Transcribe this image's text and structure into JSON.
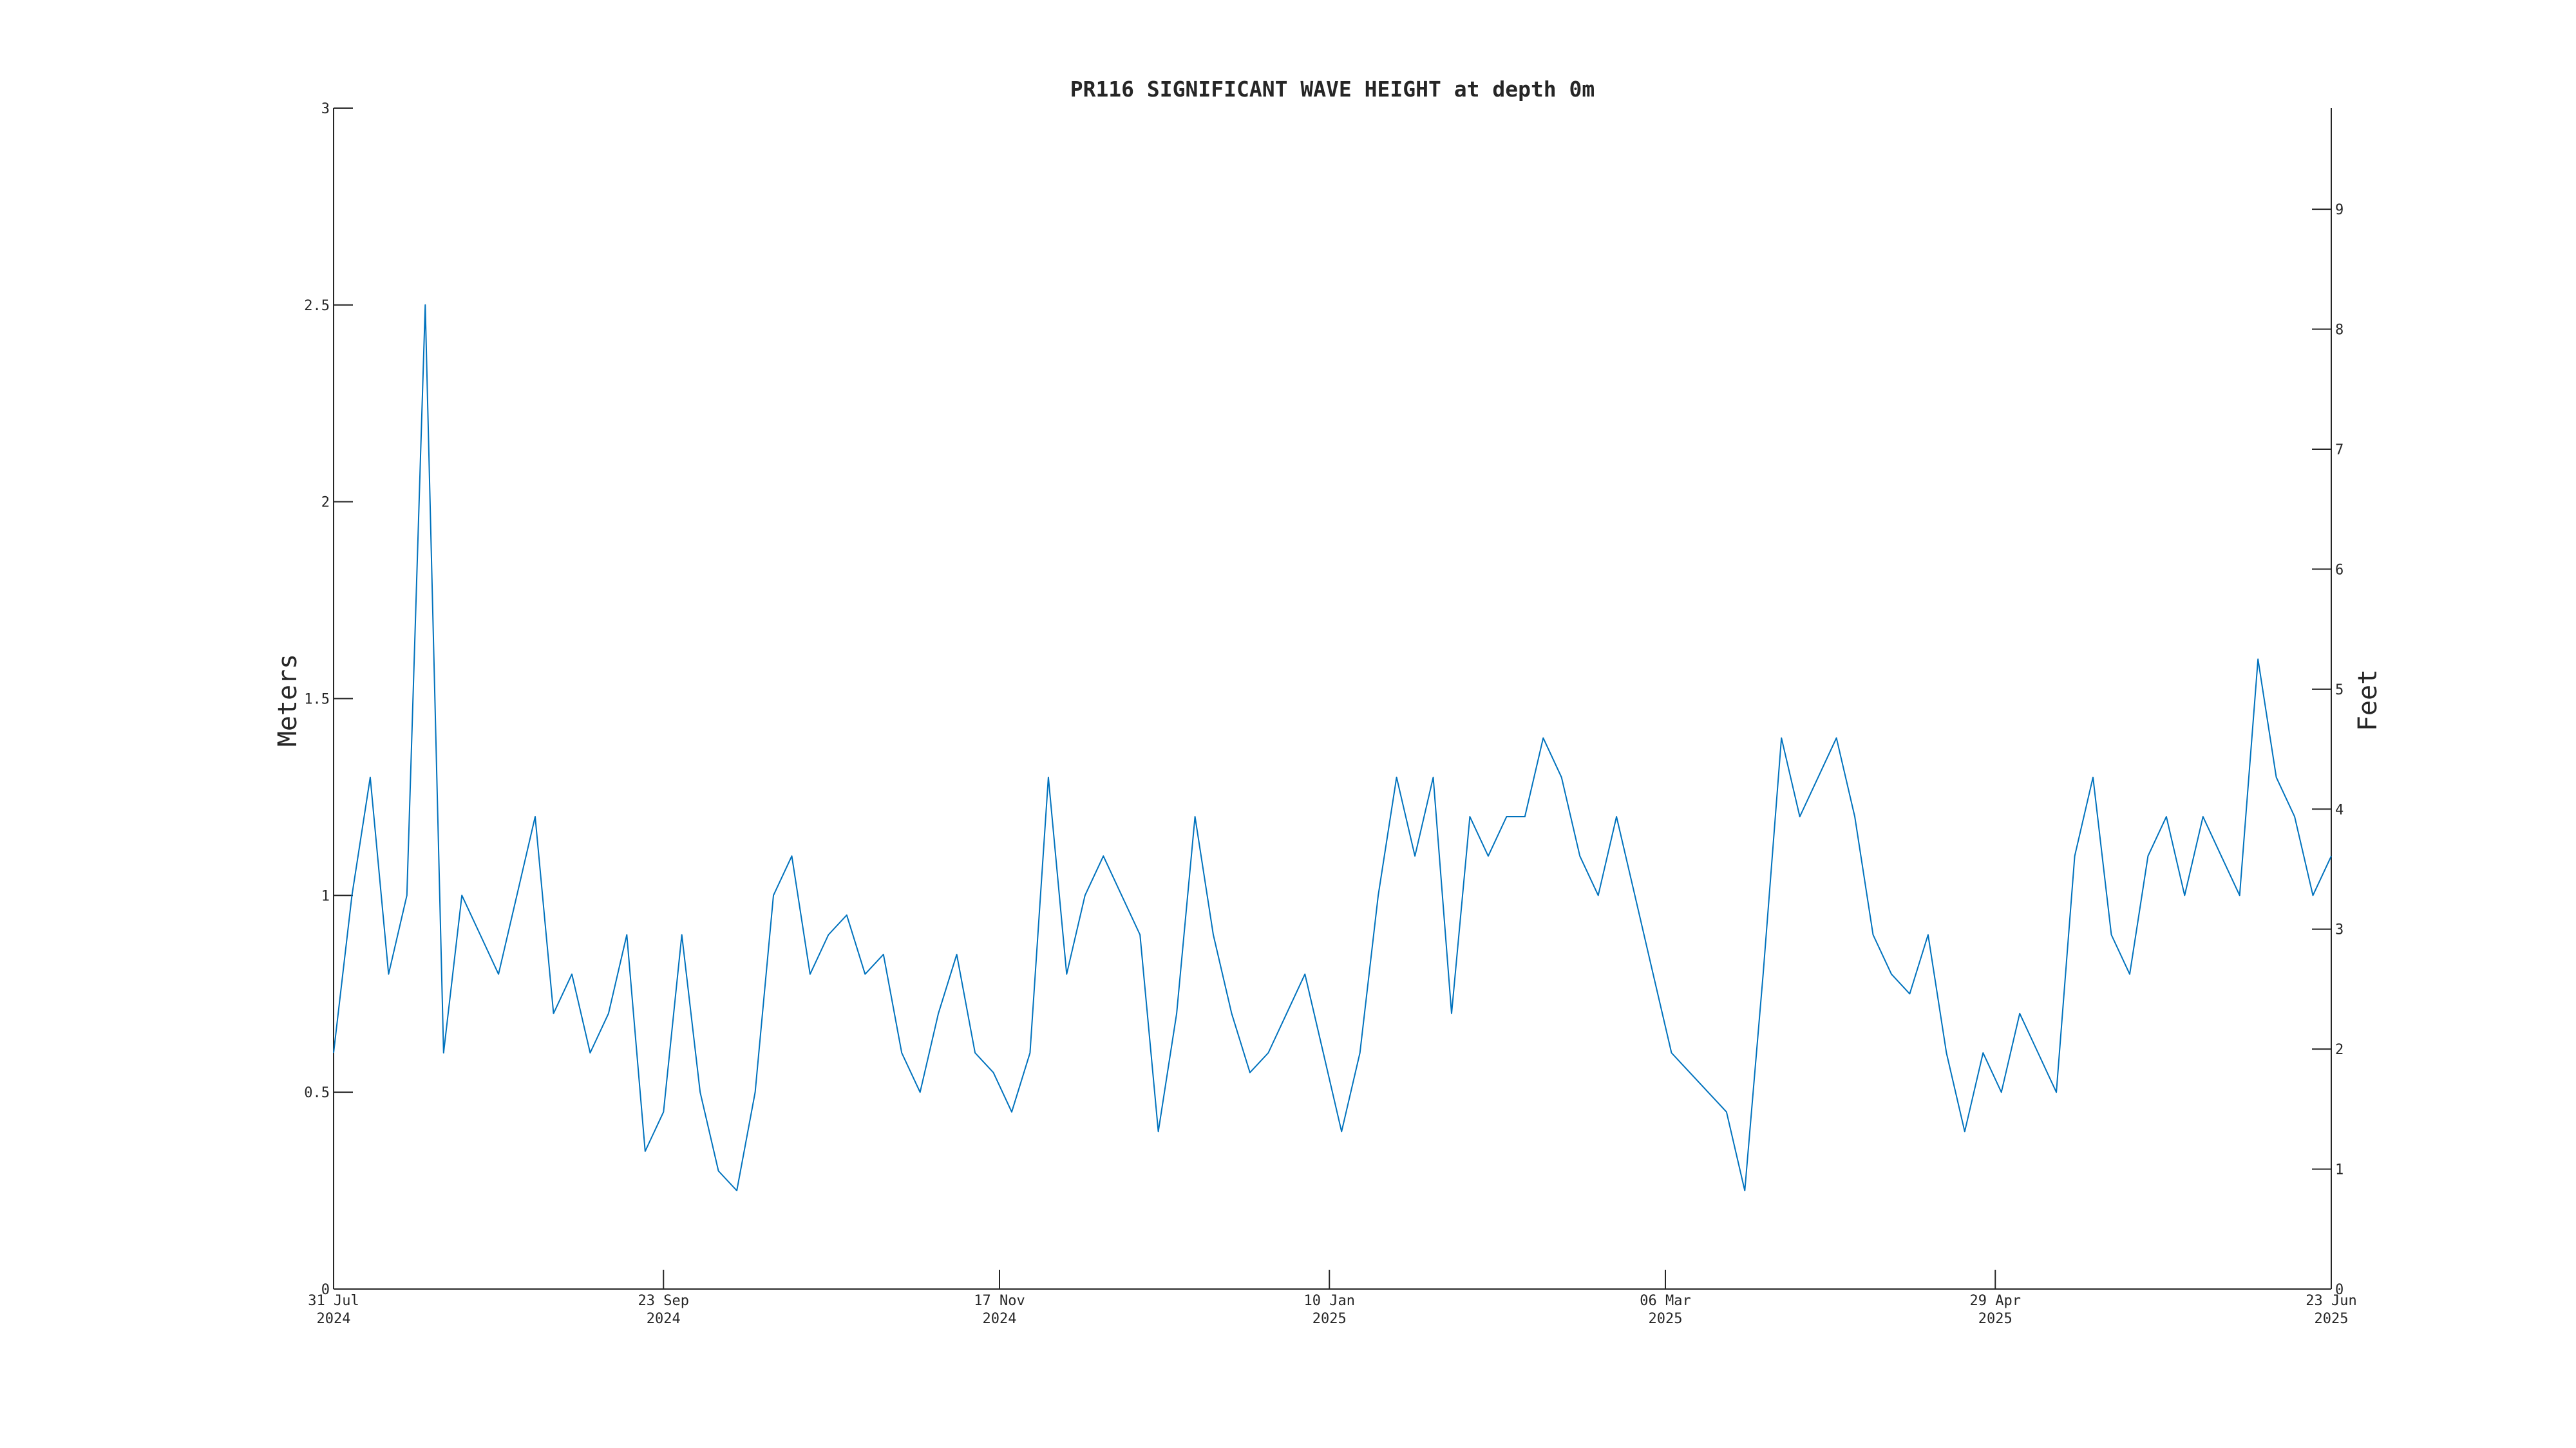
{
  "chart_data": {
    "type": "line",
    "title": "PR116 SIGNIFICANT WAVE HEIGHT at depth 0m",
    "y_label": "Meters",
    "y2_label": "Feet",
    "xlim": [
      "2024-07-31",
      "2025-06-23"
    ],
    "xticks": [
      {
        "value": "2024-07-31",
        "label": [
          "31 Jul",
          "2024"
        ]
      },
      {
        "value": "2024-09-23",
        "label": [
          "23 Sep",
          "2024"
        ]
      },
      {
        "value": "2024-11-17",
        "label": [
          "17 Nov",
          "2024"
        ]
      },
      {
        "value": "2025-01-10",
        "label": [
          "10 Jan",
          "2025"
        ]
      },
      {
        "value": "2025-03-06",
        "label": [
          "06 Mar",
          "2025"
        ]
      },
      {
        "value": "2025-04-29",
        "label": [
          "29 Apr",
          "2025"
        ]
      },
      {
        "value": "2025-06-23",
        "label": [
          "23 Jun",
          "2025"
        ]
      }
    ],
    "ylim": [
      0,
      3
    ],
    "yticks": [
      0,
      0.5,
      1,
      1.5,
      2,
      2.5,
      3
    ],
    "y2lim": [
      0,
      9.8425
    ],
    "y2ticks": [
      0,
      1,
      2,
      3,
      4,
      5,
      6,
      7,
      8,
      9
    ],
    "x": [
      "2024-07-31",
      "2024-08-03",
      "2024-08-06",
      "2024-08-09",
      "2024-08-12",
      "2024-08-15",
      "2024-08-18",
      "2024-08-21",
      "2024-08-24",
      "2024-08-27",
      "2024-08-30",
      "2024-09-02",
      "2024-09-05",
      "2024-09-08",
      "2024-09-11",
      "2024-09-14",
      "2024-09-17",
      "2024-09-20",
      "2024-09-23",
      "2024-09-26",
      "2024-09-29",
      "2024-10-02",
      "2024-10-05",
      "2024-10-08",
      "2024-10-11",
      "2024-10-14",
      "2024-10-17",
      "2024-10-20",
      "2024-10-23",
      "2024-10-26",
      "2024-10-29",
      "2024-11-01",
      "2024-11-04",
      "2024-11-07",
      "2024-11-10",
      "2024-11-13",
      "2024-11-16",
      "2024-11-19",
      "2024-11-22",
      "2024-11-25",
      "2024-11-28",
      "2024-12-01",
      "2024-12-04",
      "2024-12-07",
      "2024-12-10",
      "2024-12-13",
      "2024-12-16",
      "2024-12-19",
      "2024-12-22",
      "2024-12-25",
      "2024-12-28",
      "2024-12-31",
      "2025-01-03",
      "2025-01-06",
      "2025-01-09",
      "2025-01-12",
      "2025-01-15",
      "2025-01-18",
      "2025-01-21",
      "2025-01-24",
      "2025-01-27",
      "2025-01-30",
      "2025-02-02",
      "2025-02-05",
      "2025-02-08",
      "2025-02-11",
      "2025-02-14",
      "2025-02-17",
      "2025-02-20",
      "2025-02-23",
      "2025-02-26",
      "2025-03-01",
      "2025-03-04",
      "2025-03-07",
      "2025-03-10",
      "2025-03-13",
      "2025-03-16",
      "2025-03-19",
      "2025-03-22",
      "2025-03-25",
      "2025-03-28",
      "2025-03-31",
      "2025-04-03",
      "2025-04-06",
      "2025-04-09",
      "2025-04-12",
      "2025-04-15",
      "2025-04-18",
      "2025-04-21",
      "2025-04-24",
      "2025-04-27",
      "2025-04-30",
      "2025-05-03",
      "2025-05-06",
      "2025-05-09",
      "2025-05-12",
      "2025-05-15",
      "2025-05-18",
      "2025-05-21",
      "2025-05-24",
      "2025-05-27",
      "2025-05-30",
      "2025-06-02",
      "2025-06-05",
      "2025-06-08",
      "2025-06-11",
      "2025-06-14",
      "2025-06-17",
      "2025-06-20",
      "2025-06-23"
    ],
    "series": [
      {
        "name": "Significant wave height",
        "color": "#0072bd",
        "values": [
          0.6,
          1.0,
          1.3,
          0.8,
          1.0,
          2.5,
          0.6,
          1.0,
          0.9,
          0.8,
          1.0,
          1.2,
          0.7,
          0.8,
          0.6,
          0.7,
          0.9,
          0.35,
          0.45,
          0.9,
          0.5,
          0.3,
          0.25,
          0.5,
          1.0,
          1.1,
          0.8,
          0.9,
          0.95,
          0.8,
          0.85,
          0.6,
          0.5,
          0.7,
          0.85,
          0.6,
          0.55,
          0.45,
          0.6,
          1.3,
          0.8,
          1.0,
          1.1,
          1.0,
          0.9,
          0.4,
          0.7,
          1.2,
          0.9,
          0.7,
          0.55,
          0.6,
          0.7,
          0.8,
          0.6,
          0.4,
          0.6,
          1.0,
          1.3,
          1.1,
          1.3,
          0.7,
          1.2,
          1.1,
          1.2,
          1.2,
          1.4,
          1.3,
          1.1,
          1.0,
          1.2,
          1.0,
          0.8,
          0.6,
          0.55,
          0.5,
          0.45,
          0.25,
          0.8,
          1.4,
          1.2,
          1.3,
          1.4,
          1.2,
          0.9,
          0.8,
          0.75,
          0.9,
          0.6,
          0.4,
          0.6,
          0.5,
          0.7,
          0.6,
          0.5,
          1.1,
          1.3,
          0.9,
          0.8,
          1.1,
          1.2,
          1.0,
          1.2,
          1.1,
          1.0,
          1.6,
          1.3,
          1.2,
          1.0,
          1.1
        ]
      }
    ]
  }
}
